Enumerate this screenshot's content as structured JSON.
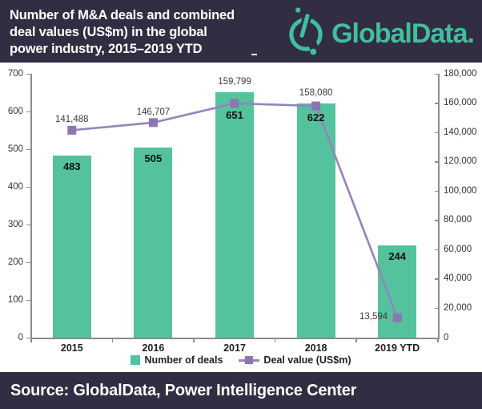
{
  "header": {
    "title_lines": [
      "Number of M&A deals and combined",
      "deal values (US$m) in the global",
      "power industry, 2015–2019 YTD"
    ],
    "logo_text": "GlobalData."
  },
  "footer": {
    "source": "Source: GlobalData, Power Intelligence Center"
  },
  "legend": {
    "items": [
      {
        "label": "Number of deals",
        "swatch": "bar-square"
      },
      {
        "label": "Deal value (US$m)",
        "swatch": "line-marker"
      }
    ]
  },
  "colors": {
    "navy": "#312d42",
    "teal_logo": "#41bf9c",
    "teal_bar": "#54c29c",
    "purple_line": "#9484bc",
    "purple_marker": "#8a77b2",
    "axis_gray": "#8a8c8e",
    "white": "#ffffff"
  },
  "chart_data": {
    "type": "bar+line combo",
    "title": "Number of M&A deals and combined deal values (US$m) in the global power industry, 2015–2019 YTD",
    "categories": [
      "2015",
      "2016",
      "2017",
      "2018",
      "2019 YTD"
    ],
    "series": [
      {
        "name": "Number of deals",
        "type": "bar",
        "axis": "left",
        "values": [
          483,
          505,
          651,
          622,
          244
        ],
        "data_labels": [
          "483",
          "505",
          "651",
          "622",
          "244"
        ]
      },
      {
        "name": "Deal value (US$m)",
        "type": "line",
        "axis": "right",
        "values": [
          141488,
          146707,
          159799,
          158080,
          13594
        ],
        "data_labels": [
          "141,488",
          "146,707",
          "159,799",
          "158,080",
          "13,594"
        ],
        "label_side": [
          "top",
          "top",
          "top",
          "top",
          "left"
        ]
      }
    ],
    "left_axis": {
      "min": 0,
      "max": 700,
      "step": 100,
      "tick_labels": [
        "0",
        "100",
        "200",
        "300",
        "400",
        "500",
        "600",
        "700"
      ]
    },
    "right_axis": {
      "min": 0,
      "max": 180000,
      "step": 20000,
      "tick_labels": [
        "0",
        "20,000",
        "40,000",
        "60,000",
        "80,000",
        "100,000",
        "120,000",
        "140,000",
        "160,000",
        "180,000"
      ]
    },
    "grid": "off",
    "legend_position": "bottom-center"
  }
}
